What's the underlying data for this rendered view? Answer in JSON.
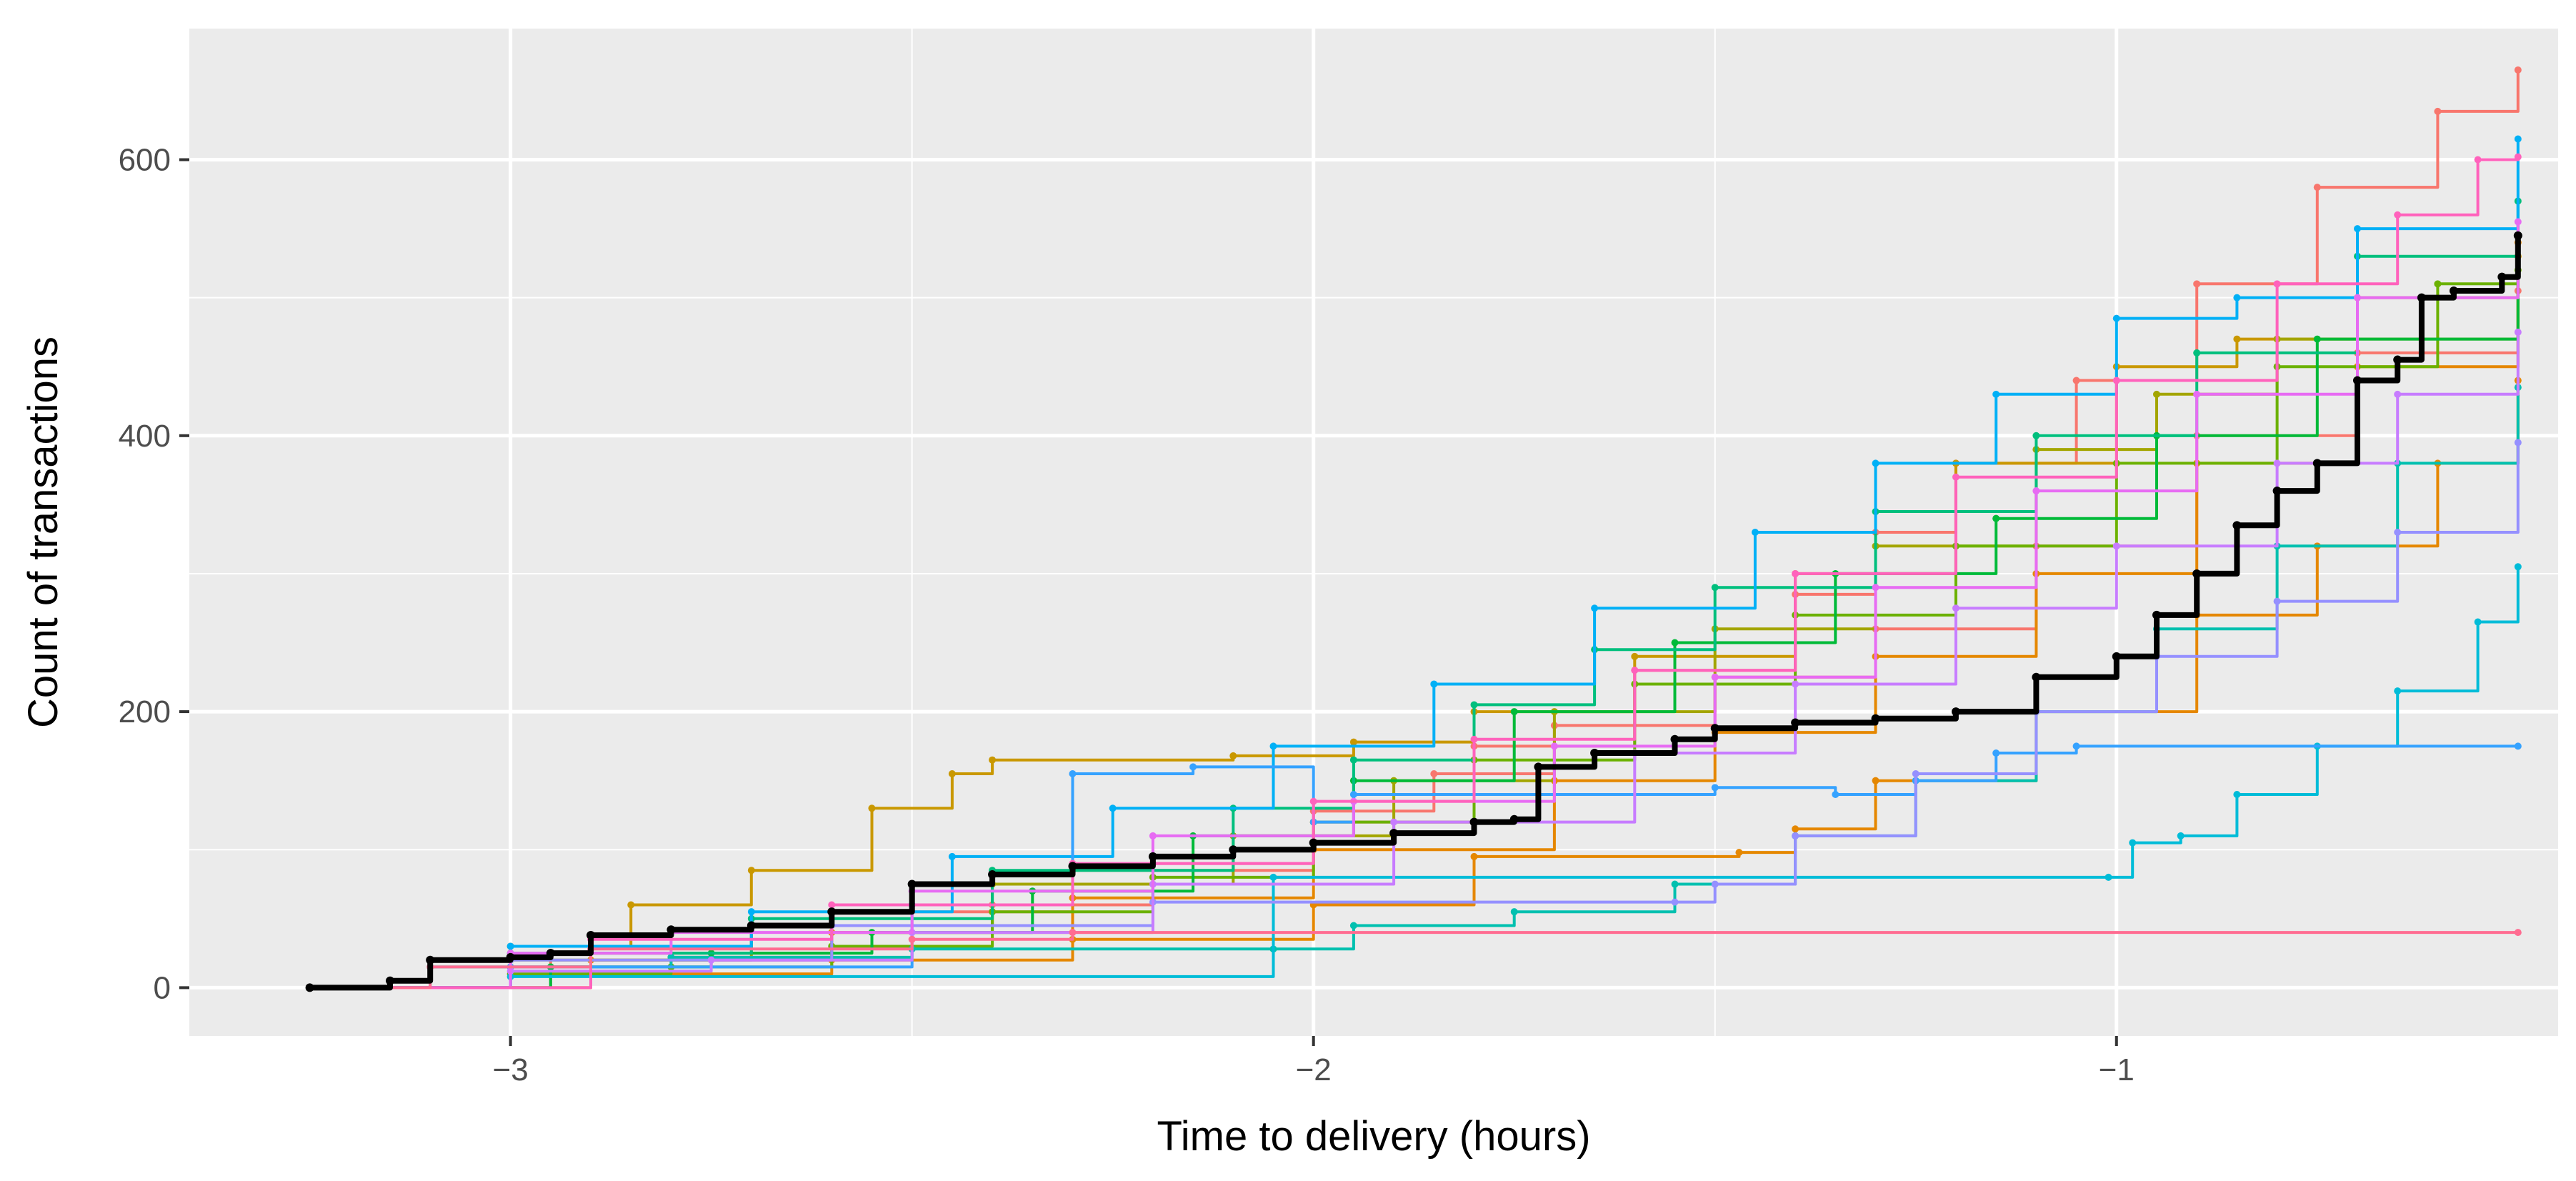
{
  "chart_data": {
    "type": "line",
    "title": "",
    "xlabel": "Time to delivery (hours)",
    "ylabel": "Count of transactions",
    "xlim": [
      -3.4,
      -0.45
    ],
    "ylim": [
      -35,
      695
    ],
    "x_ticks": [
      -3,
      -2,
      -1
    ],
    "x_tick_labels": [
      "−3",
      "−2",
      "−1"
    ],
    "y_ticks": [
      0,
      200,
      400,
      600
    ],
    "y_tick_labels": [
      "0",
      "200",
      "400",
      "600"
    ],
    "grid": true,
    "legend": "none",
    "background": "#ebebeb",
    "gridline_color": "#ffffff",
    "series": [
      {
        "color": "#f8766d",
        "points": [
          [
            -3.25,
            0
          ],
          [
            -2.95,
            25
          ],
          [
            -2.6,
            55
          ],
          [
            -2.3,
            85
          ],
          [
            -2.0,
            120
          ],
          [
            -1.8,
            175
          ],
          [
            -1.6,
            230
          ],
          [
            -1.4,
            285
          ],
          [
            -1.3,
            330
          ],
          [
            -1.2,
            380
          ],
          [
            -1.05,
            440
          ],
          [
            -0.9,
            510
          ],
          [
            -0.75,
            580
          ],
          [
            -0.6,
            635
          ],
          [
            -0.5,
            665
          ]
        ]
      },
      {
        "color": "#f8766d",
        "points": [
          [
            -3.25,
            0
          ],
          [
            -3.0,
            15
          ],
          [
            -2.8,
            22
          ],
          [
            -2.6,
            40
          ],
          [
            -2.4,
            60
          ],
          [
            -2.2,
            90
          ],
          [
            -2.0,
            128
          ],
          [
            -1.85,
            155
          ],
          [
            -1.7,
            190
          ],
          [
            -1.5,
            225
          ],
          [
            -1.3,
            260
          ],
          [
            -1.1,
            320
          ],
          [
            -0.9,
            400
          ],
          [
            -0.7,
            460
          ],
          [
            -0.5,
            505
          ]
        ]
      },
      {
        "color": "#e58700",
        "points": [
          [
            -3.25,
            0
          ],
          [
            -2.9,
            20
          ],
          [
            -2.6,
            40
          ],
          [
            -2.3,
            65
          ],
          [
            -2.0,
            100
          ],
          [
            -1.7,
            150
          ],
          [
            -1.5,
            185
          ],
          [
            -1.3,
            240
          ],
          [
            -1.1,
            300
          ],
          [
            -0.9,
            380
          ],
          [
            -0.7,
            450
          ],
          [
            -0.5,
            540
          ]
        ]
      },
      {
        "color": "#e58700",
        "points": [
          [
            -3.25,
            0
          ],
          [
            -2.9,
            10
          ],
          [
            -2.6,
            20
          ],
          [
            -2.3,
            35
          ],
          [
            -2.0,
            60
          ],
          [
            -1.8,
            95
          ],
          [
            -1.47,
            98
          ],
          [
            -1.4,
            115
          ],
          [
            -1.3,
            150
          ],
          [
            -1.1,
            200
          ],
          [
            -0.9,
            270
          ],
          [
            -0.75,
            320
          ],
          [
            -0.6,
            380
          ],
          [
            -0.5,
            440
          ]
        ]
      },
      {
        "color": "#c99800",
        "points": [
          [
            -3.25,
            0
          ],
          [
            -3.0,
            30
          ],
          [
            -2.85,
            60
          ],
          [
            -2.7,
            85
          ],
          [
            -2.55,
            130
          ],
          [
            -2.45,
            155
          ],
          [
            -2.4,
            165
          ],
          [
            -2.1,
            168
          ],
          [
            -1.95,
            178
          ],
          [
            -1.8,
            200
          ],
          [
            -1.6,
            240
          ],
          [
            -1.4,
            300
          ],
          [
            -1.2,
            380
          ],
          [
            -1.0,
            450
          ],
          [
            -0.85,
            470
          ],
          [
            -0.7,
            500
          ],
          [
            -0.5,
            530
          ]
        ]
      },
      {
        "color": "#a3a500",
        "points": [
          [
            -3.25,
            0
          ],
          [
            -3.0,
            20
          ],
          [
            -2.7,
            45
          ],
          [
            -2.4,
            75
          ],
          [
            -2.1,
            110
          ],
          [
            -1.9,
            150
          ],
          [
            -1.7,
            200
          ],
          [
            -1.5,
            260
          ],
          [
            -1.3,
            320
          ],
          [
            -1.1,
            390
          ],
          [
            -0.95,
            430
          ],
          [
            -0.8,
            470
          ],
          [
            -0.5,
            545
          ]
        ]
      },
      {
        "color": "#6bb100",
        "points": [
          [
            -3.25,
            0
          ],
          [
            -3.0,
            10
          ],
          [
            -2.8,
            15
          ],
          [
            -2.6,
            30
          ],
          [
            -2.4,
            55
          ],
          [
            -2.2,
            80
          ],
          [
            -2.0,
            120
          ],
          [
            -1.8,
            165
          ],
          [
            -1.6,
            220
          ],
          [
            -1.4,
            270
          ],
          [
            -1.2,
            320
          ],
          [
            -1.0,
            380
          ],
          [
            -0.8,
            450
          ],
          [
            -0.6,
            510
          ],
          [
            -0.5,
            520
          ]
        ]
      },
      {
        "color": "#00ba38",
        "points": [
          [
            -3.25,
            0
          ],
          [
            -2.95,
            15
          ],
          [
            -2.75,
            25
          ],
          [
            -2.55,
            40
          ],
          [
            -2.35,
            70
          ],
          [
            -2.15,
            110
          ],
          [
            -1.95,
            150
          ],
          [
            -1.75,
            200
          ],
          [
            -1.55,
            250
          ],
          [
            -1.35,
            300
          ],
          [
            -1.15,
            340
          ],
          [
            -0.95,
            400
          ],
          [
            -0.75,
            470
          ],
          [
            -0.5,
            545
          ]
        ]
      },
      {
        "color": "#00bf7d",
        "points": [
          [
            -3.25,
            0
          ],
          [
            -3.0,
            25
          ],
          [
            -2.7,
            50
          ],
          [
            -2.4,
            85
          ],
          [
            -2.1,
            130
          ],
          [
            -1.95,
            165
          ],
          [
            -1.8,
            205
          ],
          [
            -1.65,
            245
          ],
          [
            -1.5,
            290
          ],
          [
            -1.3,
            345
          ],
          [
            -1.1,
            400
          ],
          [
            -0.9,
            460
          ],
          [
            -0.7,
            530
          ],
          [
            -0.5,
            570
          ]
        ]
      },
      {
        "color": "#00c0af",
        "points": [
          [
            -3.25,
            0
          ],
          [
            -3.1,
            15
          ],
          [
            -2.8,
            22
          ],
          [
            -2.5,
            28
          ],
          [
            -2.05,
            28
          ],
          [
            -1.95,
            45
          ],
          [
            -1.75,
            55
          ],
          [
            -1.55,
            75
          ],
          [
            -1.4,
            110
          ],
          [
            -1.25,
            150
          ],
          [
            -1.1,
            200
          ],
          [
            -0.95,
            260
          ],
          [
            -0.8,
            320
          ],
          [
            -0.65,
            380
          ],
          [
            -0.5,
            435
          ]
        ]
      },
      {
        "color": "#00bcd8",
        "points": [
          [
            -3.25,
            0
          ],
          [
            -3.0,
            8
          ],
          [
            -2.05,
            80
          ],
          [
            -1.01,
            80
          ],
          [
            -0.98,
            105
          ],
          [
            -0.92,
            110
          ],
          [
            -0.85,
            140
          ],
          [
            -0.75,
            175
          ],
          [
            -0.65,
            215
          ],
          [
            -0.55,
            265
          ],
          [
            -0.5,
            305
          ]
        ]
      },
      {
        "color": "#00b0f6",
        "points": [
          [
            -3.25,
            0
          ],
          [
            -3.0,
            30
          ],
          [
            -2.7,
            55
          ],
          [
            -2.45,
            95
          ],
          [
            -2.25,
            130
          ],
          [
            -2.05,
            175
          ],
          [
            -1.85,
            220
          ],
          [
            -1.65,
            275
          ],
          [
            -1.45,
            330
          ],
          [
            -1.3,
            380
          ],
          [
            -1.15,
            430
          ],
          [
            -1.0,
            485
          ],
          [
            -0.85,
            500
          ],
          [
            -0.7,
            550
          ],
          [
            -0.5,
            615
          ]
        ]
      },
      {
        "color": "#35a2ff",
        "points": [
          [
            -3.25,
            0
          ],
          [
            -3.0,
            15
          ],
          [
            -2.5,
            60
          ],
          [
            -2.3,
            155
          ],
          [
            -2.15,
            160
          ],
          [
            -2.0,
            120
          ],
          [
            -1.95,
            140
          ],
          [
            -1.5,
            145
          ],
          [
            -1.35,
            140
          ],
          [
            -1.25,
            150
          ],
          [
            -1.15,
            170
          ],
          [
            -1.05,
            175
          ],
          [
            -0.5,
            175
          ]
        ]
      },
      {
        "color": "#9590ff",
        "points": [
          [
            -3.25,
            0
          ],
          [
            -3.0,
            20
          ],
          [
            -2.6,
            45
          ],
          [
            -2.2,
            62
          ],
          [
            -1.55,
            62
          ],
          [
            -1.5,
            75
          ],
          [
            -1.4,
            110
          ],
          [
            -1.25,
            155
          ],
          [
            -1.1,
            200
          ],
          [
            -0.95,
            240
          ],
          [
            -0.8,
            280
          ],
          [
            -0.65,
            330
          ],
          [
            -0.5,
            395
          ]
        ]
      },
      {
        "color": "#c77cff",
        "points": [
          [
            -3.25,
            0
          ],
          [
            -3.0,
            12
          ],
          [
            -2.75,
            20
          ],
          [
            -2.5,
            40
          ],
          [
            -2.2,
            75
          ],
          [
            -1.9,
            120
          ],
          [
            -1.6,
            170
          ],
          [
            -1.4,
            220
          ],
          [
            -1.2,
            275
          ],
          [
            -1.0,
            320
          ],
          [
            -0.8,
            380
          ],
          [
            -0.65,
            430
          ],
          [
            -0.5,
            475
          ]
        ]
      },
      {
        "color": "#e76bf3",
        "points": [
          [
            -3.25,
            0
          ],
          [
            -3.0,
            25
          ],
          [
            -2.8,
            40
          ],
          [
            -2.5,
            70
          ],
          [
            -2.2,
            110
          ],
          [
            -1.95,
            135
          ],
          [
            -1.7,
            175
          ],
          [
            -1.5,
            225
          ],
          [
            -1.3,
            290
          ],
          [
            -1.1,
            360
          ],
          [
            -0.9,
            430
          ],
          [
            -0.7,
            500
          ],
          [
            -0.5,
            555
          ]
        ]
      },
      {
        "color": "#ff62bc",
        "points": [
          [
            -3.25,
            0
          ],
          [
            -2.9,
            35
          ],
          [
            -2.6,
            60
          ],
          [
            -2.3,
            90
          ],
          [
            -2.0,
            135
          ],
          [
            -1.8,
            180
          ],
          [
            -1.6,
            230
          ],
          [
            -1.4,
            300
          ],
          [
            -1.2,
            370
          ],
          [
            -1.0,
            440
          ],
          [
            -0.8,
            510
          ],
          [
            -0.65,
            560
          ],
          [
            -0.55,
            600
          ],
          [
            -0.5,
            602
          ]
        ]
      },
      {
        "color": "#ff6c91",
        "points": [
          [
            -3.25,
            0
          ],
          [
            -3.1,
            15
          ],
          [
            -2.9,
            28
          ],
          [
            -2.5,
            35
          ],
          [
            -2.3,
            40
          ],
          [
            -0.5,
            40
          ]
        ]
      },
      {
        "color": "#000000",
        "width": 8,
        "points": [
          [
            -3.25,
            0
          ],
          [
            -3.15,
            5
          ],
          [
            -3.1,
            20
          ],
          [
            -3.0,
            22
          ],
          [
            -2.95,
            25
          ],
          [
            -2.9,
            38
          ],
          [
            -2.8,
            42
          ],
          [
            -2.7,
            45
          ],
          [
            -2.6,
            55
          ],
          [
            -2.5,
            75
          ],
          [
            -2.4,
            82
          ],
          [
            -2.3,
            88
          ],
          [
            -2.2,
            95
          ],
          [
            -2.1,
            100
          ],
          [
            -2.0,
            105
          ],
          [
            -1.9,
            112
          ],
          [
            -1.8,
            120
          ],
          [
            -1.75,
            122
          ],
          [
            -1.72,
            160
          ],
          [
            -1.65,
            170
          ],
          [
            -1.55,
            180
          ],
          [
            -1.5,
            188
          ],
          [
            -1.4,
            192
          ],
          [
            -1.3,
            195
          ],
          [
            -1.2,
            200
          ],
          [
            -1.1,
            225
          ],
          [
            -1.0,
            240
          ],
          [
            -0.95,
            270
          ],
          [
            -0.9,
            300
          ],
          [
            -0.85,
            335
          ],
          [
            -0.8,
            360
          ],
          [
            -0.75,
            380
          ],
          [
            -0.7,
            440
          ],
          [
            -0.65,
            455
          ],
          [
            -0.62,
            500
          ],
          [
            -0.58,
            505
          ],
          [
            -0.52,
            515
          ],
          [
            -0.5,
            545
          ]
        ]
      }
    ]
  }
}
